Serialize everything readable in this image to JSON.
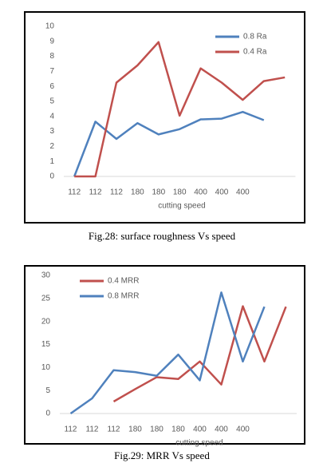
{
  "chart_data": [
    {
      "type": "line",
      "caption": "Fig.28: surface roughness Vs speed",
      "xlabel": "cutting speed",
      "categories": [
        "112",
        "112",
        "112",
        "180",
        "180",
        "180",
        "400",
        "400",
        "400",
        null,
        null
      ],
      "series": [
        {
          "name": "0.8 Ra",
          "color": "#4f81bd",
          "values": [
            0,
            3.65,
            2.5,
            3.55,
            2.8,
            3.15,
            3.8,
            3.85,
            4.3,
            3.75,
            null
          ]
        },
        {
          "name": "0.4 Ra",
          "color": "#c0504d",
          "values": [
            0,
            0,
            6.25,
            7.4,
            8.95,
            4.05,
            7.2,
            6.25,
            5.1,
            6.35,
            6.6
          ]
        }
      ],
      "ylim": [
        0,
        10
      ],
      "yticks": [
        0,
        1,
        2,
        3,
        4,
        5,
        6,
        7,
        8,
        9,
        10
      ],
      "legend": "upper right"
    },
    {
      "type": "line",
      "caption": "Fig.29: MRR Vs speed",
      "xlabel": "cutting speed",
      "categories": [
        "112",
        "112",
        "112",
        "180",
        "180",
        "180",
        "400",
        "400",
        "400",
        null,
        null
      ],
      "series": [
        {
          "name": "0.4 MRR",
          "color": "#c0504d",
          "values": [
            null,
            null,
            2.6,
            5.3,
            7.9,
            7.5,
            11.3,
            6.3,
            23.3,
            11.3,
            23.2
          ]
        },
        {
          "name": "0.8 MRR",
          "color": "#4f81bd",
          "values": [
            0,
            3.3,
            9.4,
            9,
            8.2,
            12.8,
            7.2,
            26.3,
            11.3,
            23.2,
            null
          ]
        }
      ],
      "ylim": [
        0,
        30
      ],
      "yticks": [
        0,
        5,
        10,
        15,
        20,
        25,
        30
      ],
      "legend": "upper left"
    }
  ]
}
